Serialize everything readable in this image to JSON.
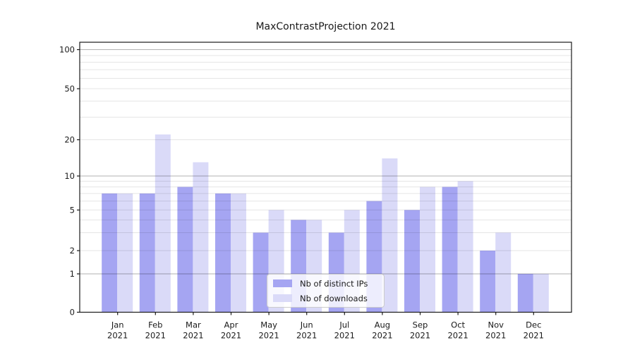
{
  "chart_data": {
    "type": "bar",
    "title": "MaxContrastProjection 2021",
    "categories": [
      "Jan",
      "Feb",
      "Mar",
      "Apr",
      "May",
      "Jun",
      "Jul",
      "Aug",
      "Sep",
      "Oct",
      "Nov",
      "Dec"
    ],
    "category_year": "2021",
    "series": [
      {
        "name": "Nb of distinct IPs",
        "color": "#a5a5f2",
        "values": [
          7,
          7,
          8,
          7,
          3,
          4,
          3,
          6,
          5,
          8,
          2,
          1
        ]
      },
      {
        "name": "Nb of downloads",
        "color": "#dadaf8",
        "values": [
          7,
          22,
          13,
          7,
          5,
          4,
          5,
          14,
          8,
          9,
          3,
          1
        ]
      }
    ],
    "yscale": "log-like (0 then log decades)",
    "ylim": [
      0,
      100
    ],
    "y_tick_labels": [
      "0",
      "1",
      "2",
      "5",
      "10",
      "20",
      "50",
      "100"
    ],
    "major_grid_values": [
      1,
      10,
      100
    ],
    "minor_grid_values": [
      2,
      3,
      4,
      5,
      6,
      7,
      8,
      9,
      20,
      30,
      40,
      50,
      60,
      70,
      80,
      90
    ],
    "grid": true,
    "legend_position": "lower center",
    "colors": {
      "major_grid": "rgba(0,0,0,0.30)",
      "minor_grid": "rgba(0,0,0,0.10)",
      "spine": "#1a1a1a"
    }
  }
}
